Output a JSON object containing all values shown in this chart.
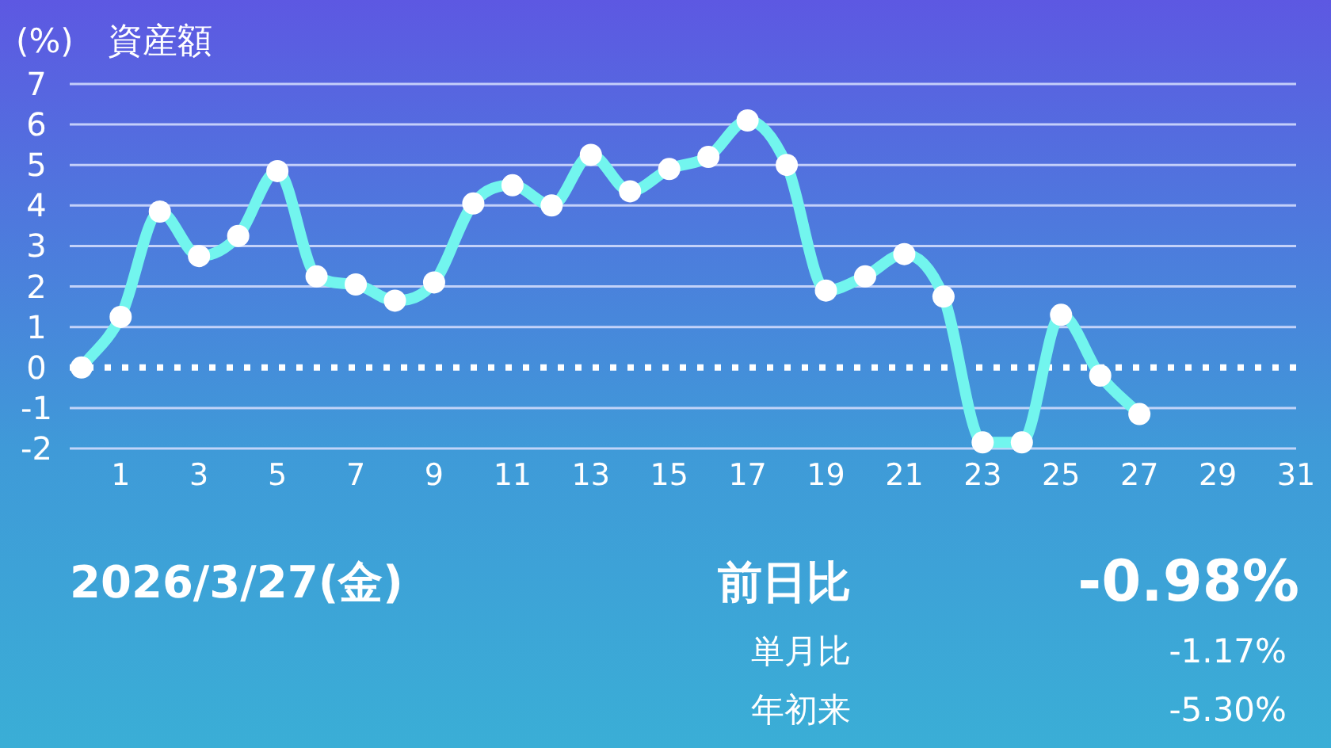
{
  "chart_data": {
    "type": "line",
    "title": "資産額",
    "ylabel": "(%)",
    "x": [
      0,
      1,
      2,
      3,
      4,
      5,
      6,
      7,
      8,
      9,
      10,
      11,
      12,
      13,
      14,
      15,
      16,
      17,
      18,
      19,
      20,
      21,
      22,
      23,
      24,
      25,
      26,
      27
    ],
    "series": [
      {
        "color": "#72f5ee",
        "values": [
          0,
          1.25,
          3.85,
          2.75,
          3.25,
          4.85,
          2.25,
          2.05,
          1.65,
          2.1,
          4.05,
          4.5,
          4.0,
          5.25,
          4.35,
          4.9,
          5.2,
          6.1,
          5.0,
          1.9,
          2.25,
          2.8,
          1.75,
          -1.85,
          -1.85,
          1.3,
          -0.2,
          -1.15
        ]
      }
    ],
    "xlim": [
      -0.3,
      31
    ],
    "xticks": [
      1,
      3,
      5,
      7,
      9,
      11,
      13,
      15,
      17,
      19,
      21,
      23,
      25,
      27,
      29,
      31
    ],
    "ylim": [
      -2,
      7
    ],
    "yticks": [
      -2,
      -1,
      0,
      1,
      2,
      3,
      4,
      5,
      6,
      7
    ],
    "grid": "y",
    "marker": "circle",
    "line_style": "solid",
    "ref_lines": [
      {
        "axis": "y",
        "value": 0,
        "label": null,
        "color": "#ffffff",
        "line_style": "dotted"
      }
    ],
    "annotations": [
      "2026/3/27(金)",
      "前日比",
      "-0.98%",
      "単月比",
      "-1.17%",
      "年初来",
      "-5.30%"
    ]
  }
}
